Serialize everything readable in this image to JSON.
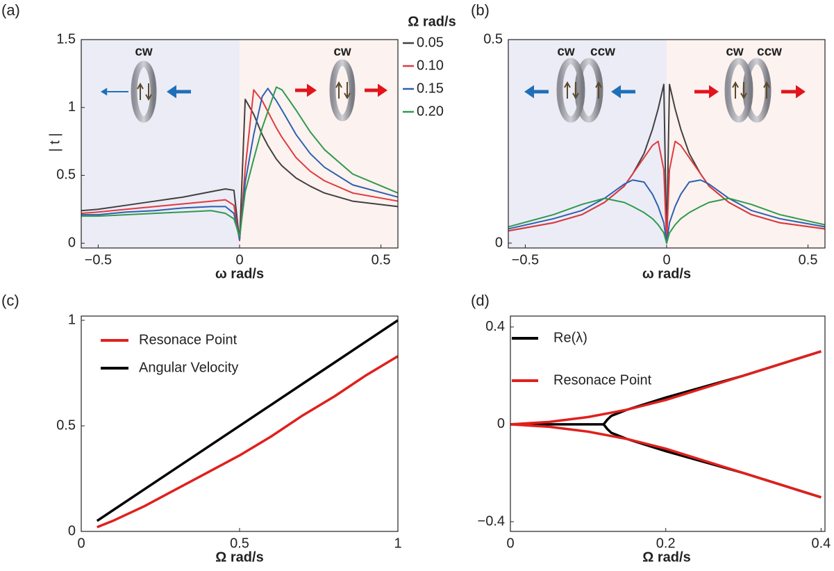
{
  "chart_data": [
    {
      "type": "line",
      "panel_label": "(a)",
      "xlabel": "ω rad/s",
      "ylabel": "| t |",
      "legend_title": "Ω rad/s",
      "legend": "outside right",
      "background_colors": [
        "#ececf6",
        "#fcf2ef"
      ],
      "annotations": [
        "cw",
        "cw"
      ],
      "xlim": [
        -0.56,
        0.56
      ],
      "ylim": [
        -0.035,
        1.5
      ],
      "xticks": [
        {
          "value": -0.5,
          "label": "−0.5"
        },
        0,
        0.5
      ],
      "yticks": [
        0,
        0.5,
        1,
        1.5
      ],
      "x": [
        -0.56,
        -0.5,
        -0.4,
        -0.3,
        -0.2,
        -0.1,
        -0.05,
        -0.02,
        0,
        0.02,
        0.05,
        0.08,
        0.1,
        0.13,
        0.15,
        0.2,
        0.25,
        0.3,
        0.4,
        0.56
      ],
      "series": [
        {
          "name": "0.05",
          "color": "#404040",
          "values": [
            0.24,
            0.25,
            0.28,
            0.31,
            0.34,
            0.38,
            0.4,
            0.39,
            0.02,
            1.06,
            0.95,
            0.8,
            0.72,
            0.62,
            0.57,
            0.48,
            0.42,
            0.37,
            0.31,
            0.27
          ]
        },
        {
          "name": "0.10",
          "color": "#e03a3e",
          "values": [
            0.22,
            0.23,
            0.25,
            0.27,
            0.29,
            0.31,
            0.32,
            0.28,
            0.02,
            0.55,
            1.13,
            1.05,
            0.97,
            0.85,
            0.78,
            0.63,
            0.53,
            0.46,
            0.37,
            0.31
          ]
        },
        {
          "name": "0.15",
          "color": "#2e5fb0",
          "values": [
            0.21,
            0.21,
            0.23,
            0.24,
            0.26,
            0.27,
            0.27,
            0.22,
            0.03,
            0.45,
            0.8,
            1.08,
            1.14,
            1.05,
            0.98,
            0.8,
            0.66,
            0.56,
            0.43,
            0.34
          ]
        },
        {
          "name": "0.20",
          "color": "#2e9a4e",
          "values": [
            0.2,
            0.2,
            0.21,
            0.22,
            0.23,
            0.24,
            0.22,
            0.18,
            0.05,
            0.38,
            0.62,
            0.85,
            0.97,
            1.15,
            1.13,
            0.98,
            0.82,
            0.69,
            0.51,
            0.37
          ]
        }
      ]
    },
    {
      "type": "line",
      "panel_label": "(b)",
      "xlabel": "ω rad/s",
      "background_colors": [
        "#ececf6",
        "#fcf2ef"
      ],
      "annotations": [
        "cw",
        "ccw",
        "cw",
        "ccw"
      ],
      "xlim": [
        -0.56,
        0.56
      ],
      "ylim": [
        -0.012,
        0.5
      ],
      "xticks": [
        {
          "value": -0.5,
          "label": "−0.5"
        },
        0,
        0.5
      ],
      "yticks": [
        0,
        0.5
      ],
      "x": [
        -0.56,
        -0.4,
        -0.3,
        -0.22,
        -0.15,
        -0.12,
        -0.08,
        -0.05,
        -0.03,
        -0.01,
        0,
        0.01,
        0.03,
        0.05,
        0.08,
        0.12,
        0.15,
        0.22,
        0.3,
        0.4,
        0.56
      ],
      "series": [
        {
          "color": "#404040",
          "values": [
            0.03,
            0.05,
            0.07,
            0.1,
            0.14,
            0.17,
            0.22,
            0.28,
            0.33,
            0.39,
            0.0,
            0.39,
            0.33,
            0.28,
            0.22,
            0.17,
            0.14,
            0.1,
            0.07,
            0.05,
            0.035
          ]
        },
        {
          "color": "#e03a3e",
          "values": [
            0.03,
            0.05,
            0.07,
            0.1,
            0.14,
            0.17,
            0.21,
            0.24,
            0.25,
            0.18,
            0.0,
            0.18,
            0.25,
            0.24,
            0.21,
            0.17,
            0.14,
            0.1,
            0.07,
            0.05,
            0.035
          ]
        },
        {
          "color": "#2e5fb0",
          "values": [
            0.035,
            0.06,
            0.08,
            0.11,
            0.145,
            0.155,
            0.15,
            0.12,
            0.09,
            0.05,
            0.0,
            0.05,
            0.09,
            0.12,
            0.15,
            0.155,
            0.145,
            0.11,
            0.08,
            0.06,
            0.04
          ]
        },
        {
          "color": "#2e9a4e",
          "values": [
            0.04,
            0.07,
            0.095,
            0.11,
            0.1,
            0.09,
            0.075,
            0.06,
            0.045,
            0.025,
            0.0,
            0.025,
            0.045,
            0.06,
            0.075,
            0.09,
            0.1,
            0.11,
            0.095,
            0.07,
            0.045
          ]
        }
      ]
    },
    {
      "type": "line",
      "panel_label": "(c)",
      "xlabel": "Ω rad/s",
      "legend": "upper left",
      "xlim": [
        0,
        1
      ],
      "ylim": [
        0,
        1.02
      ],
      "xticks": [
        0,
        0.5,
        1
      ],
      "yticks": [
        0,
        0.5,
        1
      ],
      "x": [
        0.05,
        0.1,
        0.2,
        0.3,
        0.4,
        0.5,
        0.6,
        0.7,
        0.8,
        0.9,
        1
      ],
      "series": [
        {
          "name": "Resonace Point",
          "color": "#e0201c",
          "values": [
            0.02,
            0.05,
            0.12,
            0.2,
            0.28,
            0.36,
            0.45,
            0.55,
            0.64,
            0.74,
            0.83
          ]
        },
        {
          "name": "Angular Velocity",
          "color": "#000000",
          "values": [
            0.05,
            0.1,
            0.2,
            0.3,
            0.4,
            0.5,
            0.6,
            0.7,
            0.8,
            0.9,
            1.0
          ]
        }
      ]
    },
    {
      "type": "line",
      "panel_label": "(d)",
      "xlabel": "Ω rad/s",
      "legend": "upper left",
      "xlim": [
        0,
        0.405
      ],
      "ylim": [
        -0.44,
        0.445
      ],
      "xticks": [
        0,
        0.2,
        0.4
      ],
      "yticks": [
        {
          "value": -0.4,
          "label": "−0.4"
        },
        0,
        0.4
      ],
      "series": [
        {
          "name": "Re(λ)",
          "color": "#000000",
          "x": [
            0,
            0.05,
            0.1,
            0.12,
            0.125,
            0.13,
            0.15,
            0.2,
            0.25,
            0.3,
            0.35,
            0.4
          ],
          "values": [
            0,
            0,
            0,
            0,
            0.02,
            0.035,
            0.06,
            0.11,
            0.155,
            0.2,
            0.25,
            0.3
          ]
        },
        {
          "color": "#000000",
          "x": [
            0.12,
            0.125,
            0.13,
            0.15,
            0.2,
            0.25,
            0.3,
            0.35,
            0.4
          ],
          "values": [
            0,
            -0.02,
            -0.035,
            -0.06,
            -0.11,
            -0.155,
            -0.2,
            -0.25,
            -0.3
          ]
        },
        {
          "name": "Resonace Point",
          "color": "#e0201c",
          "x": [
            0,
            0.05,
            0.1,
            0.15,
            0.2,
            0.25,
            0.3,
            0.35,
            0.4
          ],
          "values": [
            0,
            0.01,
            0.03,
            0.06,
            0.1,
            0.15,
            0.2,
            0.25,
            0.3
          ]
        },
        {
          "color": "#e0201c",
          "x": [
            0,
            0.05,
            0.1,
            0.15,
            0.2,
            0.25,
            0.3,
            0.35,
            0.4
          ],
          "values": [
            0,
            -0.01,
            -0.03,
            -0.06,
            -0.1,
            -0.15,
            -0.2,
            -0.25,
            -0.3
          ]
        }
      ]
    }
  ]
}
